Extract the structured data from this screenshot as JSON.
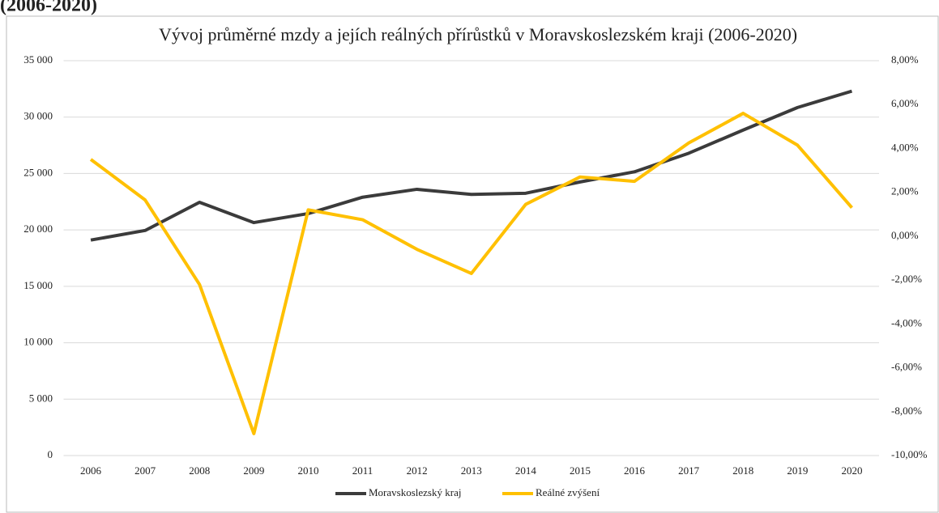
{
  "heading": "(2006-2020)",
  "chart_data": {
    "type": "line",
    "title": "Vývoj průměrné mzdy a jejích reálných přírůstků v Moravskoslezském kraji (2006-2020)",
    "categories": [
      "2006",
      "2007",
      "2008",
      "2009",
      "2010",
      "2011",
      "2012",
      "2013",
      "2014",
      "2015",
      "2016",
      "2017",
      "2018",
      "2019",
      "2020"
    ],
    "series": [
      {
        "name": "Moravskoslezský kraj",
        "color": "#3b3b3b",
        "axis": "y",
        "values": [
          19100,
          19950,
          22450,
          20650,
          21450,
          22900,
          23600,
          23150,
          23250,
          24250,
          25150,
          26800,
          28850,
          30850,
          32300
        ]
      },
      {
        "name": "Reálné zvýšení",
        "color": "#ffc000",
        "axis": "y2",
        "values": [
          3.5,
          1.65,
          -2.2,
          -9.0,
          1.2,
          0.75,
          -0.6,
          -1.7,
          1.45,
          2.7,
          2.5,
          4.25,
          5.6,
          4.15,
          1.3
        ]
      }
    ],
    "ylim": [
      0,
      35000
    ],
    "yticks": [
      0,
      {
        "value": 5000,
        "label": "5 000"
      },
      {
        "value": 10000,
        "label": "10 000"
      },
      {
        "value": 15000,
        "label": "15 000"
      },
      {
        "value": 20000,
        "label": "20 000"
      },
      {
        "value": 25000,
        "label": "25 000"
      },
      {
        "value": 30000,
        "label": "30 000"
      },
      {
        "value": 35000,
        "label": "35 000"
      }
    ],
    "y2lim": [
      -10,
      8
    ],
    "y2ticks": [
      {
        "value": -10,
        "label": "-10,00%"
      },
      {
        "value": -8,
        "label": "-8,00%"
      },
      {
        "value": -6,
        "label": "-6,00%"
      },
      {
        "value": -4,
        "label": "-4,00%"
      },
      {
        "value": -2,
        "label": "-2,00%"
      },
      {
        "value": 0,
        "label": "0,00%"
      },
      {
        "value": 2,
        "label": "2,00%"
      },
      {
        "value": 4,
        "label": "4,00%"
      },
      {
        "value": 6,
        "label": "6,00%"
      },
      {
        "value": 8,
        "label": "8,00%"
      }
    ],
    "grid": true,
    "legend": "bottom"
  }
}
